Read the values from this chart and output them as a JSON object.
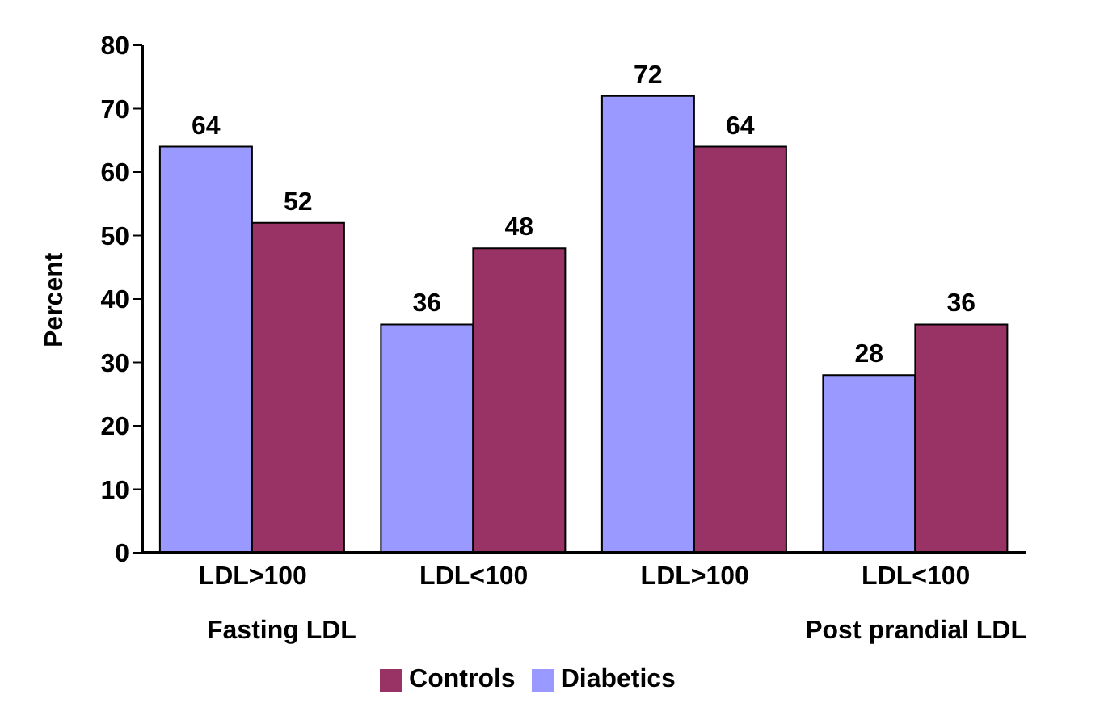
{
  "chart_data": {
    "type": "bar",
    "ylabel": "Percent",
    "categories": [
      "LDL>100",
      "LDL<100",
      "LDL>100",
      "LDL<100"
    ],
    "series": [
      {
        "name": "Diabetics",
        "color": "#9999ff",
        "values": [
          64,
          36,
          72,
          28
        ]
      },
      {
        "name": "Controls",
        "color": "#993366",
        "values": [
          52,
          48,
          64,
          36
        ]
      }
    ],
    "ylim": [
      0,
      80
    ],
    "yticks": [
      0,
      10,
      20,
      30,
      40,
      50,
      60,
      70,
      80
    ],
    "data_labels": true,
    "legend": "bottom",
    "grid": false,
    "annotations": [
      "Fasting LDL",
      "Post prandial LDL"
    ]
  }
}
